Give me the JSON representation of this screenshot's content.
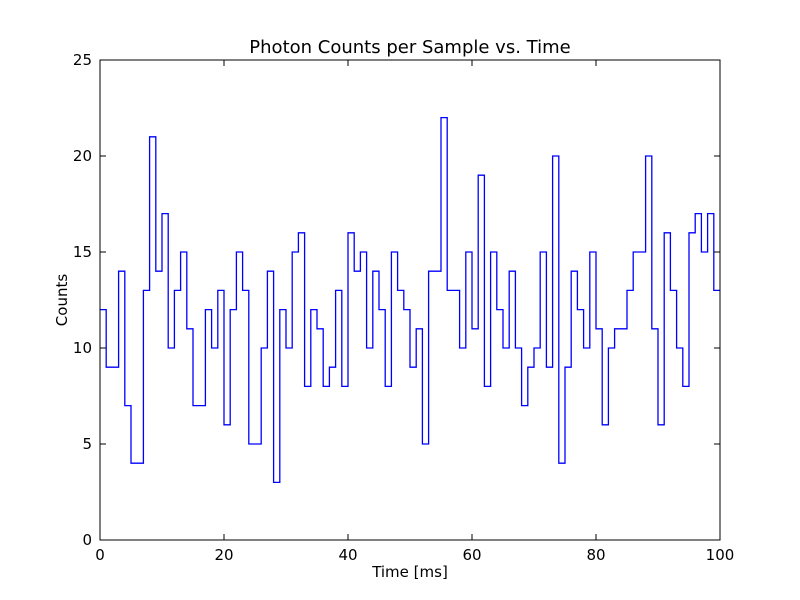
{
  "chart_data": {
    "type": "line",
    "drawstyle": "steps-post",
    "title": "Photon Counts per Sample vs. Time",
    "xlabel": "Time [ms]",
    "ylabel": "Counts",
    "xlim": [
      0,
      100
    ],
    "ylim": [
      0,
      25
    ],
    "xticks": [
      0,
      20,
      40,
      60,
      80,
      100
    ],
    "yticks": [
      0,
      5,
      10,
      15,
      20,
      25
    ],
    "grid": false,
    "series": [
      {
        "color": "#0000ff",
        "x": [
          0,
          1,
          2,
          3,
          4,
          5,
          6,
          7,
          8,
          9,
          10,
          11,
          12,
          13,
          14,
          15,
          16,
          17,
          18,
          19,
          20,
          21,
          22,
          23,
          24,
          25,
          26,
          27,
          28,
          29,
          30,
          31,
          32,
          33,
          34,
          35,
          36,
          37,
          38,
          39,
          40,
          41,
          42,
          43,
          44,
          45,
          46,
          47,
          48,
          49,
          50,
          51,
          52,
          53,
          54,
          55,
          56,
          57,
          58,
          59,
          60,
          61,
          62,
          63,
          64,
          65,
          66,
          67,
          68,
          69,
          70,
          71,
          72,
          73,
          74,
          75,
          76,
          77,
          78,
          79,
          80,
          81,
          82,
          83,
          84,
          85,
          86,
          87,
          88,
          89,
          90,
          91,
          92,
          93,
          94,
          95,
          96,
          97,
          98,
          99
        ],
        "y": [
          12,
          9,
          9,
          14,
          7,
          4,
          4,
          13,
          21,
          14,
          17,
          10,
          13,
          15,
          11,
          7,
          7,
          12,
          10,
          13,
          6,
          12,
          15,
          13,
          5,
          5,
          10,
          14,
          3,
          12,
          10,
          15,
          16,
          8,
          12,
          11,
          8,
          9,
          13,
          8,
          16,
          14,
          15,
          10,
          14,
          12,
          8,
          15,
          13,
          12,
          9,
          11,
          5,
          14,
          14,
          22,
          13,
          13,
          10,
          15,
          11,
          19,
          8,
          15,
          12,
          10,
          14,
          10,
          7,
          9,
          10,
          15,
          9,
          20,
          4,
          9,
          14,
          12,
          10,
          15,
          11,
          6,
          10,
          11,
          11,
          13,
          15,
          15,
          20,
          11,
          6,
          16,
          13,
          10,
          8,
          16,
          17,
          15,
          17,
          13
        ]
      }
    ]
  }
}
